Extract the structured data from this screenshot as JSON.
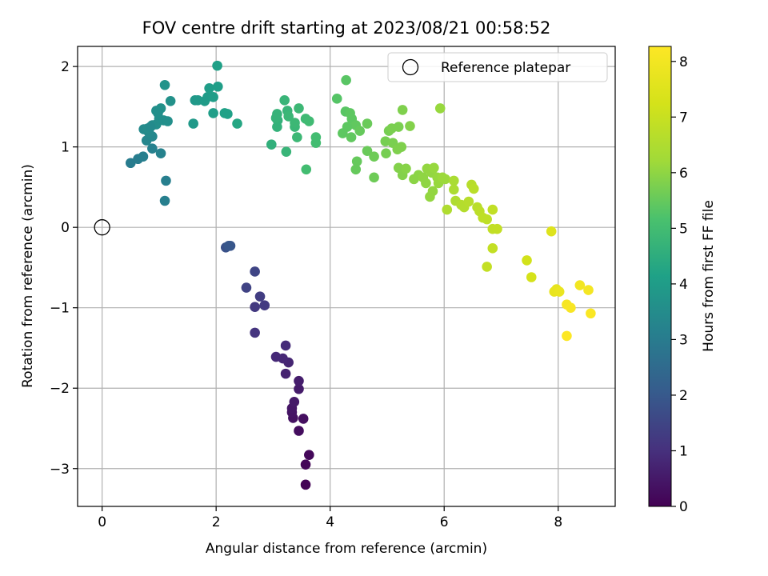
{
  "chart_data": {
    "type": "scatter",
    "title": "FOV centre drift starting at 2023/08/21 00:58:52",
    "xlabel": "Angular distance from reference (arcmin)",
    "ylabel": "Rotation from reference (arcmin)",
    "xlim": [
      -0.43,
      9.0
    ],
    "ylim": [
      -3.47,
      2.25
    ],
    "xticks": [
      0,
      2,
      4,
      6,
      8
    ],
    "yticks": [
      -3,
      -2,
      -1,
      0,
      1,
      2
    ],
    "grid": true,
    "legend": {
      "placement": "top-right",
      "entries": [
        "Reference platepar"
      ]
    },
    "reference_point": {
      "x": 0,
      "y": 0,
      "marker": "open-circle"
    },
    "colorbar": {
      "label": "Hours from first FF file",
      "range": [
        0,
        8.27
      ],
      "ticks": [
        0,
        1,
        2,
        3,
        4,
        5,
        6,
        7,
        8
      ],
      "colormap": "viridis"
    },
    "series": [
      {
        "color_by": "hours",
        "points": [
          {
            "x": 3.57,
            "y": -3.2,
            "c": 0.05
          },
          {
            "x": 3.57,
            "y": -2.95,
            "c": 0.1
          },
          {
            "x": 3.63,
            "y": -2.83,
            "c": 0.15
          },
          {
            "x": 3.45,
            "y": -2.53,
            "c": 0.25
          },
          {
            "x": 3.53,
            "y": -2.38,
            "c": 0.3
          },
          {
            "x": 3.35,
            "y": -2.37,
            "c": 0.35
          },
          {
            "x": 3.33,
            "y": -2.3,
            "c": 0.4
          },
          {
            "x": 3.33,
            "y": -2.25,
            "c": 0.45
          },
          {
            "x": 3.37,
            "y": -2.17,
            "c": 0.5
          },
          {
            "x": 3.45,
            "y": -2.01,
            "c": 0.55
          },
          {
            "x": 3.45,
            "y": -1.91,
            "c": 0.6
          },
          {
            "x": 3.22,
            "y": -1.82,
            "c": 0.7
          },
          {
            "x": 3.27,
            "y": -1.68,
            "c": 0.75
          },
          {
            "x": 3.17,
            "y": -1.63,
            "c": 0.8
          },
          {
            "x": 3.05,
            "y": -1.61,
            "c": 0.85
          },
          {
            "x": 3.22,
            "y": -1.47,
            "c": 0.9
          },
          {
            "x": 2.68,
            "y": -1.31,
            "c": 1.1
          },
          {
            "x": 2.68,
            "y": -0.99,
            "c": 1.2
          },
          {
            "x": 2.85,
            "y": -0.97,
            "c": 1.25
          },
          {
            "x": 2.77,
            "y": -0.86,
            "c": 1.3
          },
          {
            "x": 2.53,
            "y": -0.75,
            "c": 1.45
          },
          {
            "x": 2.68,
            "y": -0.55,
            "c": 1.5
          },
          {
            "x": 2.17,
            "y": -0.25,
            "c": 1.8
          },
          {
            "x": 2.25,
            "y": -0.23,
            "c": 1.9
          },
          {
            "x": 2.22,
            "y": -0.23,
            "c": 1.95
          },
          {
            "x": 0.5,
            "y": 0.8,
            "c": 3.0
          },
          {
            "x": 0.63,
            "y": 0.85,
            "c": 3.05
          },
          {
            "x": 0.72,
            "y": 0.88,
            "c": 3.1
          },
          {
            "x": 0.88,
            "y": 0.98,
            "c": 3.15
          },
          {
            "x": 1.03,
            "y": 0.92,
            "c": 3.2
          },
          {
            "x": 1.12,
            "y": 0.58,
            "c": 3.1
          },
          {
            "x": 1.1,
            "y": 0.33,
            "c": 3.1
          },
          {
            "x": 0.78,
            "y": 1.08,
            "c": 3.3
          },
          {
            "x": 0.88,
            "y": 1.13,
            "c": 3.35
          },
          {
            "x": 0.82,
            "y": 1.18,
            "c": 3.4
          },
          {
            "x": 0.73,
            "y": 1.22,
            "c": 3.45
          },
          {
            "x": 0.8,
            "y": 1.23,
            "c": 3.5
          },
          {
            "x": 0.88,
            "y": 1.27,
            "c": 3.5
          },
          {
            "x": 0.95,
            "y": 1.28,
            "c": 3.55
          },
          {
            "x": 0.85,
            "y": 1.25,
            "c": 3.45
          },
          {
            "x": 1.0,
            "y": 1.35,
            "c": 3.55
          },
          {
            "x": 1.08,
            "y": 1.33,
            "c": 3.6
          },
          {
            "x": 1.15,
            "y": 1.32,
            "c": 3.6
          },
          {
            "x": 0.95,
            "y": 1.45,
            "c": 3.6
          },
          {
            "x": 1.03,
            "y": 1.48,
            "c": 3.65
          },
          {
            "x": 1.2,
            "y": 1.57,
            "c": 3.65
          },
          {
            "x": 1.1,
            "y": 1.77,
            "c": 3.7
          },
          {
            "x": 0.98,
            "y": 1.42,
            "c": 3.6
          },
          {
            "x": 1.6,
            "y": 1.29,
            "c": 3.9
          },
          {
            "x": 1.63,
            "y": 1.58,
            "c": 3.85
          },
          {
            "x": 1.68,
            "y": 1.58,
            "c": 3.9
          },
          {
            "x": 1.8,
            "y": 1.57,
            "c": 3.95
          },
          {
            "x": 1.85,
            "y": 1.62,
            "c": 3.95
          },
          {
            "x": 1.88,
            "y": 1.73,
            "c": 4.0
          },
          {
            "x": 1.95,
            "y": 1.62,
            "c": 4.0
          },
          {
            "x": 1.95,
            "y": 1.42,
            "c": 4.05
          },
          {
            "x": 2.03,
            "y": 1.75,
            "c": 4.05
          },
          {
            "x": 2.02,
            "y": 2.01,
            "c": 4.1
          },
          {
            "x": 2.15,
            "y": 1.42,
            "c": 4.15
          },
          {
            "x": 2.2,
            "y": 1.41,
            "c": 4.15
          },
          {
            "x": 2.37,
            "y": 1.29,
            "c": 4.3
          },
          {
            "x": 2.97,
            "y": 1.03,
            "c": 4.6
          },
          {
            "x": 3.07,
            "y": 1.25,
            "c": 4.65
          },
          {
            "x": 3.08,
            "y": 1.33,
            "c": 4.65
          },
          {
            "x": 3.05,
            "y": 1.36,
            "c": 4.7
          },
          {
            "x": 3.07,
            "y": 1.41,
            "c": 4.7
          },
          {
            "x": 3.2,
            "y": 1.58,
            "c": 4.75
          },
          {
            "x": 3.25,
            "y": 1.45,
            "c": 4.75
          },
          {
            "x": 3.27,
            "y": 1.38,
            "c": 4.8
          },
          {
            "x": 3.38,
            "y": 1.25,
            "c": 4.8
          },
          {
            "x": 3.38,
            "y": 1.3,
            "c": 4.85
          },
          {
            "x": 3.45,
            "y": 1.48,
            "c": 4.85
          },
          {
            "x": 3.23,
            "y": 0.94,
            "c": 4.75
          },
          {
            "x": 3.42,
            "y": 1.12,
            "c": 4.85
          },
          {
            "x": 3.57,
            "y": 1.35,
            "c": 4.9
          },
          {
            "x": 3.63,
            "y": 1.32,
            "c": 4.95
          },
          {
            "x": 3.75,
            "y": 1.05,
            "c": 5.0
          },
          {
            "x": 3.75,
            "y": 1.12,
            "c": 5.0
          },
          {
            "x": 3.58,
            "y": 0.72,
            "c": 5.0
          },
          {
            "x": 4.12,
            "y": 1.6,
            "c": 5.3
          },
          {
            "x": 4.28,
            "y": 1.83,
            "c": 5.35
          },
          {
            "x": 4.27,
            "y": 1.44,
            "c": 5.35
          },
          {
            "x": 4.35,
            "y": 1.42,
            "c": 5.4
          },
          {
            "x": 4.38,
            "y": 1.35,
            "c": 5.4
          },
          {
            "x": 4.45,
            "y": 1.27,
            "c": 5.45
          },
          {
            "x": 4.3,
            "y": 1.25,
            "c": 5.4
          },
          {
            "x": 4.22,
            "y": 1.17,
            "c": 5.4
          },
          {
            "x": 4.37,
            "y": 1.12,
            "c": 5.45
          },
          {
            "x": 4.52,
            "y": 1.2,
            "c": 5.5
          },
          {
            "x": 4.65,
            "y": 1.29,
            "c": 5.55
          },
          {
            "x": 4.65,
            "y": 0.95,
            "c": 5.55
          },
          {
            "x": 4.47,
            "y": 0.82,
            "c": 5.5
          },
          {
            "x": 4.45,
            "y": 0.72,
            "c": 5.5
          },
          {
            "x": 4.77,
            "y": 0.88,
            "c": 5.6
          },
          {
            "x": 4.77,
            "y": 0.62,
            "c": 5.6
          },
          {
            "x": 4.97,
            "y": 1.07,
            "c": 5.7
          },
          {
            "x": 5.03,
            "y": 1.2,
            "c": 5.7
          },
          {
            "x": 5.08,
            "y": 1.23,
            "c": 5.75
          },
          {
            "x": 5.2,
            "y": 1.25,
            "c": 5.75
          },
          {
            "x": 5.27,
            "y": 1.46,
            "c": 5.8
          },
          {
            "x": 5.4,
            "y": 1.26,
            "c": 5.85
          },
          {
            "x": 5.1,
            "y": 1.05,
            "c": 5.75
          },
          {
            "x": 5.18,
            "y": 0.97,
            "c": 5.8
          },
          {
            "x": 5.25,
            "y": 1.0,
            "c": 5.8
          },
          {
            "x": 4.98,
            "y": 0.92,
            "c": 5.7
          },
          {
            "x": 5.2,
            "y": 0.74,
            "c": 5.85
          },
          {
            "x": 5.27,
            "y": 0.65,
            "c": 5.85
          },
          {
            "x": 5.33,
            "y": 0.73,
            "c": 5.9
          },
          {
            "x": 5.47,
            "y": 0.6,
            "c": 5.95
          },
          {
            "x": 5.55,
            "y": 0.65,
            "c": 5.95
          },
          {
            "x": 5.63,
            "y": 0.62,
            "c": 6.0
          },
          {
            "x": 5.68,
            "y": 0.55,
            "c": 6.0
          },
          {
            "x": 5.7,
            "y": 0.73,
            "c": 6.05
          },
          {
            "x": 5.78,
            "y": 0.68,
            "c": 6.05
          },
          {
            "x": 5.82,
            "y": 0.74,
            "c": 6.1
          },
          {
            "x": 5.88,
            "y": 0.62,
            "c": 6.1
          },
          {
            "x": 5.9,
            "y": 0.55,
            "c": 6.1
          },
          {
            "x": 5.93,
            "y": 1.48,
            "c": 6.1
          },
          {
            "x": 5.97,
            "y": 0.62,
            "c": 6.15
          },
          {
            "x": 6.02,
            "y": 0.6,
            "c": 6.15
          },
          {
            "x": 5.8,
            "y": 0.45,
            "c": 6.05
          },
          {
            "x": 5.75,
            "y": 0.38,
            "c": 6.05
          },
          {
            "x": 6.17,
            "y": 0.58,
            "c": 6.4
          },
          {
            "x": 6.05,
            "y": 0.22,
            "c": 6.5
          },
          {
            "x": 6.2,
            "y": 0.33,
            "c": 6.5
          },
          {
            "x": 6.17,
            "y": 0.47,
            "c": 6.45
          },
          {
            "x": 6.3,
            "y": 0.28,
            "c": 6.6
          },
          {
            "x": 6.35,
            "y": 0.25,
            "c": 6.6
          },
          {
            "x": 6.43,
            "y": 0.32,
            "c": 6.65
          },
          {
            "x": 6.48,
            "y": 0.53,
            "c": 6.65
          },
          {
            "x": 6.52,
            "y": 0.48,
            "c": 6.7
          },
          {
            "x": 6.58,
            "y": 0.25,
            "c": 6.7
          },
          {
            "x": 6.62,
            "y": 0.2,
            "c": 6.75
          },
          {
            "x": 6.68,
            "y": 0.12,
            "c": 6.8
          },
          {
            "x": 6.75,
            "y": 0.1,
            "c": 6.8
          },
          {
            "x": 6.85,
            "y": 0.22,
            "c": 6.85
          },
          {
            "x": 6.85,
            "y": -0.02,
            "c": 6.85
          },
          {
            "x": 6.93,
            "y": -0.02,
            "c": 6.9
          },
          {
            "x": 6.85,
            "y": -0.26,
            "c": 6.9
          },
          {
            "x": 6.75,
            "y": -0.49,
            "c": 6.9
          },
          {
            "x": 7.45,
            "y": -0.41,
            "c": 7.2
          },
          {
            "x": 7.53,
            "y": -0.62,
            "c": 7.25
          },
          {
            "x": 7.88,
            "y": -0.05,
            "c": 7.5
          },
          {
            "x": 7.97,
            "y": -0.77,
            "c": 7.7
          },
          {
            "x": 7.93,
            "y": -0.8,
            "c": 7.75
          },
          {
            "x": 8.02,
            "y": -0.8,
            "c": 7.8
          },
          {
            "x": 8.38,
            "y": -0.72,
            "c": 8.0
          },
          {
            "x": 8.53,
            "y": -0.78,
            "c": 8.05
          },
          {
            "x": 8.15,
            "y": -0.96,
            "c": 8.1
          },
          {
            "x": 8.22,
            "y": -1.0,
            "c": 8.15
          },
          {
            "x": 8.57,
            "y": -1.07,
            "c": 8.2
          },
          {
            "x": 8.15,
            "y": -1.35,
            "c": 8.25
          }
        ]
      }
    ]
  }
}
